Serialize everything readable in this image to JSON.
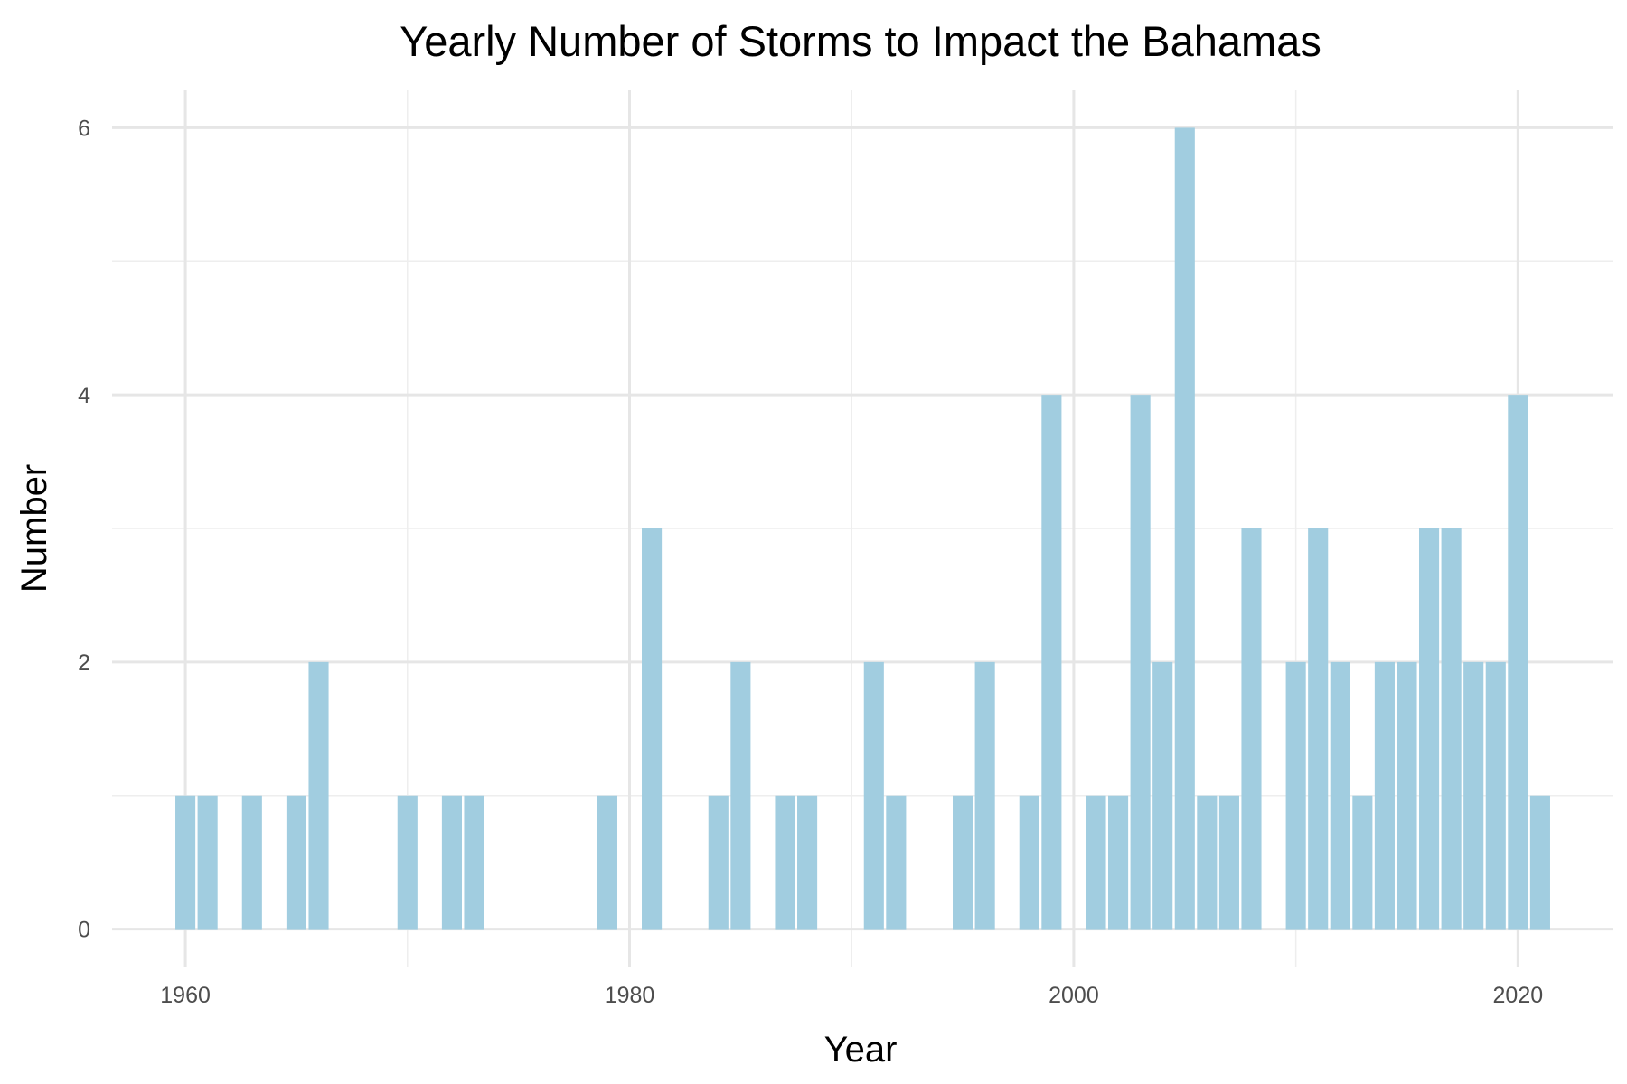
{
  "chart_data": {
    "type": "bar",
    "title": "Yearly Number of Storms to Impact the Bahamas",
    "xlabel": "Year",
    "ylabel": "Number",
    "x_ticks": [
      1960,
      1980,
      2000,
      2020
    ],
    "y_ticks": [
      0,
      2,
      4,
      6
    ],
    "xlim": [
      1956.7,
      2024.3
    ],
    "ylim": [
      -0.28,
      6.28
    ],
    "grid": true,
    "bar_color": "#a1cde0",
    "series": [
      {
        "x": [
          1960,
          1961,
          1963,
          1965,
          1966,
          1970,
          1972,
          1973,
          1979,
          1981,
          1984,
          1985,
          1987,
          1988,
          1991,
          1992,
          1995,
          1996,
          1998,
          1999,
          2001,
          2002,
          2003,
          2004,
          2005,
          2006,
          2007,
          2008,
          2010,
          2011,
          2012,
          2013,
          2014,
          2015,
          2016,
          2017,
          2018,
          2019,
          2020,
          2021
        ],
        "values": [
          1,
          1,
          1,
          1,
          2,
          1,
          1,
          1,
          1,
          3,
          1,
          2,
          1,
          1,
          2,
          1,
          1,
          2,
          1,
          4,
          1,
          1,
          4,
          2,
          6,
          1,
          1,
          3,
          2,
          3,
          2,
          1,
          2,
          2,
          3,
          3,
          2,
          2,
          4,
          1
        ]
      }
    ]
  }
}
